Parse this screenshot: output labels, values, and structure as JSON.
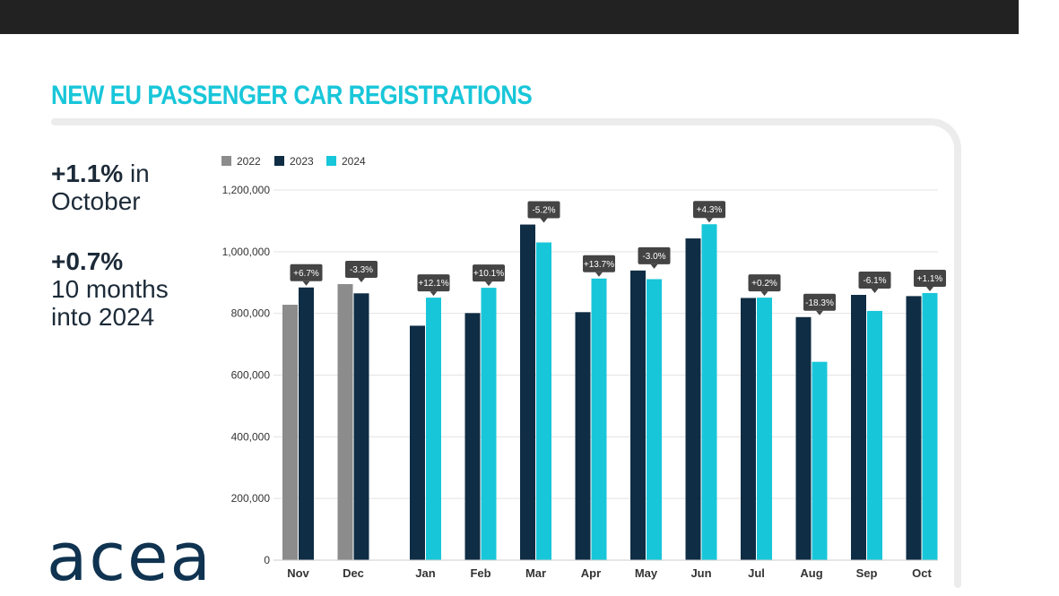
{
  "title": "NEW EU PASSENGER CAR REGISTRATIONS",
  "stats": {
    "stat1_value": "+1.1%",
    "stat1_suffix": "in",
    "stat1_line2": "October",
    "stat2_value": "+0.7%",
    "stat2_line2": "10 months",
    "stat2_line3": "into 2024"
  },
  "logo_text": "acea",
  "colors": {
    "2022": "#8c8c8c",
    "2023": "#0f2d44",
    "2024": "#18c6d9",
    "title": "#18c6d9",
    "label_bg": "#444444"
  },
  "chart_data": {
    "type": "bar",
    "legend_position": "top-left",
    "grid": true,
    "ylim": [
      0,
      1200000
    ],
    "yticks": [
      "0",
      "200,000",
      "400,000",
      "600,000",
      "800,000",
      "1,000,000",
      "1,200,000"
    ],
    "categories": [
      "Nov",
      "Dec",
      "Jan",
      "Feb",
      "Mar",
      "Apr",
      "May",
      "Jun",
      "Jul",
      "Aug",
      "Sep",
      "Oct"
    ],
    "series": [
      {
        "name": "2022",
        "values": [
          828000,
          895000,
          null,
          null,
          null,
          null,
          null,
          null,
          null,
          null,
          null,
          null
        ]
      },
      {
        "name": "2023",
        "values": [
          884000,
          865000,
          760000,
          801000,
          1088000,
          804000,
          939000,
          1043000,
          850000,
          788000,
          860000,
          856000
        ]
      },
      {
        "name": "2024",
        "values": [
          null,
          null,
          851000,
          883000,
          1030000,
          913000,
          911000,
          1089000,
          851000,
          643000,
          808000,
          866000
        ]
      }
    ],
    "annotations": [
      "+6.7%",
      "-3.3%",
      "+12.1%",
      "+10.1%",
      "-5.2%",
      "+13.7%",
      "-3.0%",
      "+4.3%",
      "+0.2%",
      "-18.3%",
      "-6.1%",
      "+1.1%"
    ]
  }
}
